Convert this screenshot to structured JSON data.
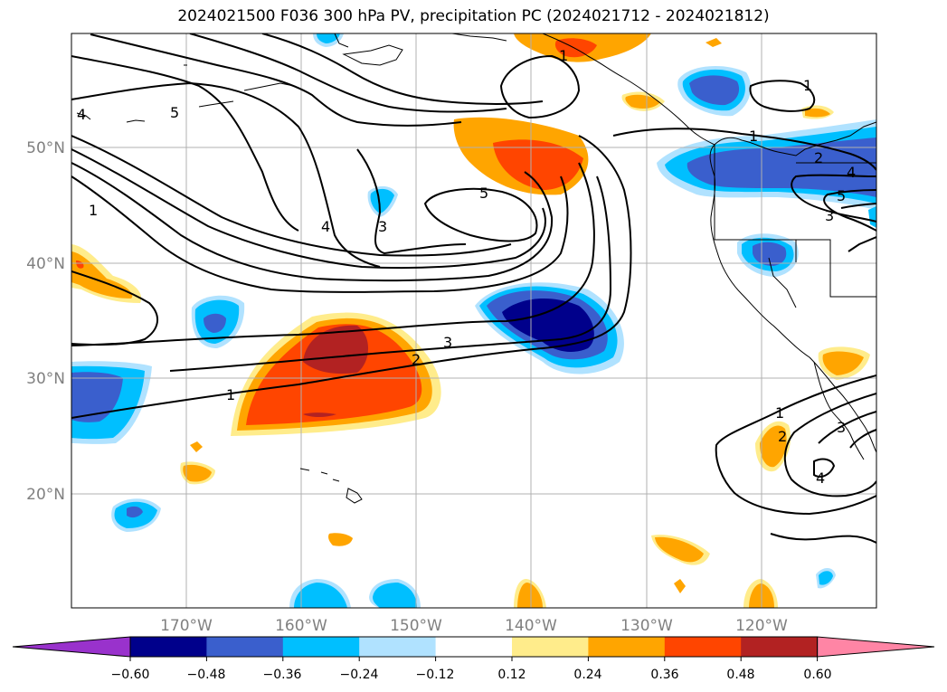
{
  "title": "2024021500 F036 300 hPa PV, precipitation PC (2024021712 - 2024021812)",
  "map": {
    "lat_labels": [
      "50°N",
      "40°N",
      "30°N",
      "20°N"
    ],
    "lon_labels": [
      "170°W",
      "160°W",
      "150°W",
      "140°W",
      "130°W",
      "120°W"
    ],
    "contour_labels": [
      "1",
      "2",
      "3",
      "4",
      "5",
      "1",
      "2",
      "3",
      "4",
      "5",
      "1",
      "2",
      "3",
      "4",
      "5"
    ]
  },
  "colorbar": {
    "ticks": [
      "−0.60",
      "−0.48",
      "−0.36",
      "−0.24",
      "−0.12",
      "0.12",
      "0.24",
      "0.36",
      "0.48",
      "0.60"
    ],
    "colors": [
      "#9932cc",
      "#00008b",
      "#3a5fcd",
      "#00bfff",
      "#b0e2ff",
      "#ffffff",
      "#ffec8b",
      "#ffa500",
      "#ff4500",
      "#b22222",
      "#ff85a5"
    ]
  }
}
